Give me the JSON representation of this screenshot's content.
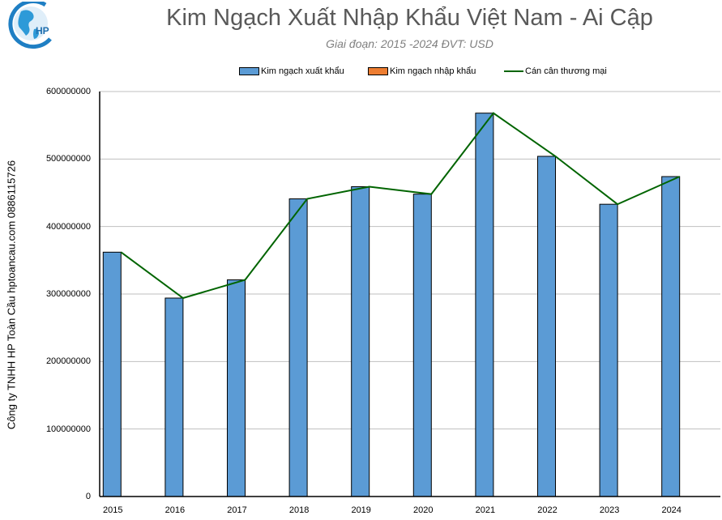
{
  "header": {
    "title": "Kim Ngạch Xuất Nhập Khẩu Việt Nam - Ai Cập",
    "subtitle": "Giai đoạn: 2015 -2024  ĐVT: USD",
    "logo_text": "HP"
  },
  "legend": {
    "items": [
      {
        "label": "Kim ngạch xuất khẩu",
        "type": "bar",
        "color": "#5b9bd5"
      },
      {
        "label": "Kim ngạch nhập khẩu",
        "type": "bar",
        "color": "#ed7d31"
      },
      {
        "label": "Cán cân thương mại",
        "type": "line",
        "color": "#006400"
      }
    ]
  },
  "axis": {
    "y_side_label": "Công ty TNHH HP Toàn Cầu hptoancau.com 0886115726",
    "y_ticks": [
      "600000000",
      "500000000",
      "400000000",
      "300000000",
      "200000000",
      "100000000",
      "0"
    ]
  },
  "colors": {
    "export_bar": "#5b9bd5",
    "import_bar": "#ed7d31",
    "balance_line": "#006400",
    "grid": "#bfbfbf",
    "title": "#595959"
  },
  "chart_data": {
    "type": "bar",
    "title": "Kim Ngạch Xuất Nhập Khẩu Việt Nam - Ai Cập",
    "subtitle": "Giai đoạn: 2015 -2024  ĐVT: USD",
    "xlabel": "",
    "ylabel": "Công ty TNHH HP Toàn Cầu hptoancau.com 0886115726",
    "ylim": [
      0,
      600000000
    ],
    "y_tick_step": 100000000,
    "grid": true,
    "legend_position": "top",
    "categories": [
      "2015",
      "2016",
      "2017",
      "2018",
      "2019",
      "2020",
      "2021",
      "2022",
      "2023",
      "2024"
    ],
    "series": [
      {
        "name": "Kim ngạch xuất khẩu",
        "type": "bar",
        "color": "#5b9bd5",
        "values": [
          362000000,
          294000000,
          321000000,
          441000000,
          459000000,
          448000000,
          568000000,
          504000000,
          433000000,
          474000000
        ]
      },
      {
        "name": "Kim ngạch nhập khẩu",
        "type": "bar",
        "color": "#ed7d31",
        "values": [
          0,
          0,
          0,
          0,
          0,
          0,
          0,
          0,
          0,
          0
        ]
      },
      {
        "name": "Cán cân thương mại",
        "type": "line",
        "color": "#006400",
        "values": [
          362000000,
          294000000,
          321000000,
          441000000,
          459000000,
          448000000,
          568000000,
          504000000,
          433000000,
          474000000
        ]
      }
    ]
  }
}
